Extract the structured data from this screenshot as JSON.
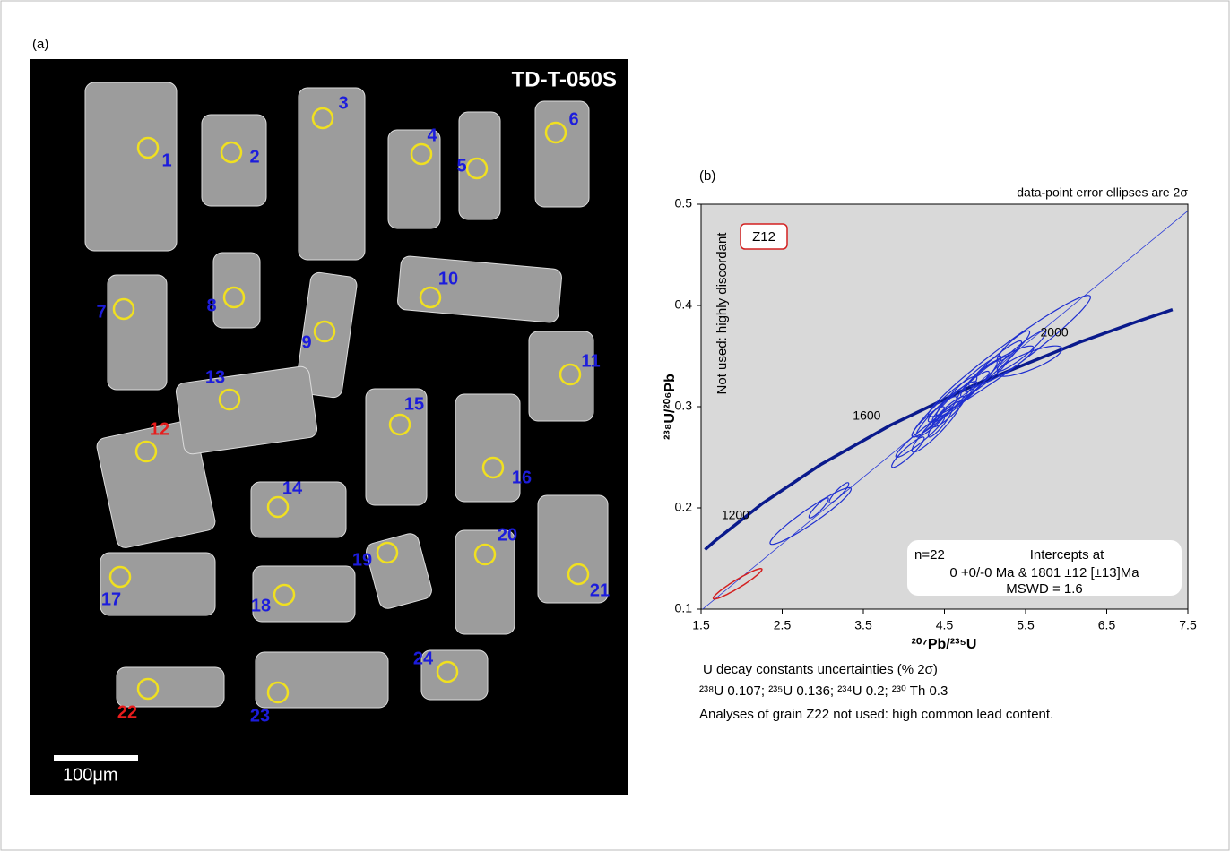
{
  "panel_a": {
    "label": "(a)",
    "sample": "TD-T-050S",
    "scale_bar": "100μm",
    "grains": [
      {
        "label": "1",
        "color": "#1c1cdc"
      },
      {
        "label": "2",
        "color": "#1c1cdc"
      },
      {
        "label": "3",
        "color": "#1c1cdc"
      },
      {
        "label": "4",
        "color": "#1c1cdc"
      },
      {
        "label": "5",
        "color": "#1c1cdc"
      },
      {
        "label": "6",
        "color": "#1c1cdc"
      },
      {
        "label": "7",
        "color": "#1c1cdc"
      },
      {
        "label": "8",
        "color": "#1c1cdc"
      },
      {
        "label": "9",
        "color": "#1c1cdc"
      },
      {
        "label": "10",
        "color": "#1c1cdc"
      },
      {
        "label": "11",
        "color": "#1c1cdc"
      },
      {
        "label": "12",
        "color": "#e81c1c"
      },
      {
        "label": "13",
        "color": "#1c1cdc"
      },
      {
        "label": "14",
        "color": "#1c1cdc"
      },
      {
        "label": "15",
        "color": "#1c1cdc"
      },
      {
        "label": "16",
        "color": "#1c1cdc"
      },
      {
        "label": "17",
        "color": "#1c1cdc"
      },
      {
        "label": "18",
        "color": "#1c1cdc"
      },
      {
        "label": "19",
        "color": "#1c1cdc"
      },
      {
        "label": "20",
        "color": "#1c1cdc"
      },
      {
        "label": "21",
        "color": "#1c1cdc"
      },
      {
        "label": "22",
        "color": "#e81c1c"
      },
      {
        "label": "23",
        "color": "#1c1cdc"
      },
      {
        "label": "24",
        "color": "#1c1cdc"
      }
    ]
  },
  "chart_data": {
    "type": "concordia",
    "panel_label": "(b)",
    "subtitle": "data-point error ellipses are 2σ",
    "xlabel": "²⁰⁷Pb/²³⁵U",
    "ylabel": "²³⁸U/²⁰⁶Pb",
    "xlim": [
      1.5,
      7.5
    ],
    "xticks": [
      1.5,
      2.5,
      3.5,
      4.5,
      5.5,
      6.5,
      7.5
    ],
    "ylim": [
      0.1,
      0.5
    ],
    "yticks": [
      0.1,
      0.2,
      0.3,
      0.4,
      0.5
    ],
    "concordia": {
      "x": [
        1.5488,
        1.6774,
        2.2604,
        2.9703,
        3.8346,
        4.8869,
        6.1688,
        6.9103,
        7.311
      ],
      "y": [
        0.1588,
        0.1678,
        0.2046,
        0.2426,
        0.2817,
        0.3221,
        0.3638,
        0.3851,
        0.3959
      ],
      "color": "#0a1a8c"
    },
    "age_markers": [
      {
        "age": 1200,
        "x": 2.2604,
        "y": 0.2046
      },
      {
        "age": 1600,
        "x": 3.8346,
        "y": 0.2817
      },
      {
        "age": 2000,
        "x": 6.1688,
        "y": 0.3638
      }
    ],
    "discordia": {
      "x": [
        1.5,
        7.5
      ],
      "y": [
        0.0987,
        0.4935
      ],
      "color": "#2a3ad8"
    },
    "ellipses": {
      "color": "#1f2fd0",
      "x": [
        2.85,
        2.95,
        3.2,
        4.05,
        4.2,
        4.4,
        4.5,
        4.45,
        4.6,
        4.7,
        4.8,
        5.0,
        5.1,
        5.2,
        5.3,
        5.45,
        5.55,
        4.3,
        4.55,
        4.9,
        5.35,
        4.4
      ],
      "y": [
        0.192,
        0.2,
        0.215,
        0.255,
        0.27,
        0.29,
        0.3,
        0.285,
        0.305,
        0.31,
        0.32,
        0.33,
        0.34,
        0.34,
        0.35,
        0.355,
        0.345,
        0.285,
        0.295,
        0.325,
        0.36,
        0.28
      ],
      "x_err": [
        0.5,
        0.12,
        0.12,
        0.2,
        0.3,
        0.25,
        0.4,
        0.15,
        0.3,
        0.35,
        0.4,
        0.3,
        0.35,
        0.4,
        1.0,
        0.3,
        0.4,
        0.2,
        0.2,
        0.25,
        0.2,
        0.3
      ],
      "y_err": [
        0.028,
        0.01,
        0.01,
        0.015,
        0.02,
        0.02,
        0.03,
        0.015,
        0.02,
        0.025,
        0.03,
        0.02,
        0.025,
        0.02,
        0.06,
        0.02,
        0.015,
        0.015,
        0.015,
        0.02,
        0.015,
        0.025
      ],
      "rho": [
        0.95,
        0.9,
        0.9,
        0.92,
        0.95,
        0.92,
        0.95,
        0.9,
        0.93,
        0.95,
        0.95,
        0.93,
        0.95,
        0.9,
        0.97,
        0.93,
        0.8,
        0.9,
        0.9,
        0.93,
        0.9,
        0.93
      ]
    },
    "rejected": {
      "label": "Z12",
      "color": "#d42020",
      "x": 1.95,
      "y": 0.125,
      "x_err": 0.3,
      "y_err": 0.015,
      "rho": 0.95
    },
    "rejected_note": "Not used: highly discordant",
    "legend": {
      "n": "n=22",
      "heading": "Intercepts at",
      "intercepts": "0 +0/-0 Ma & 1801 ±12 [±13]Ma",
      "mswd": "MSWD = 1.6"
    },
    "notes": [
      "U decay constants uncertainties (% 2σ)",
      "²³⁸U 0.107; ²³⁵U 0.136; ²³⁴U 0.2; ²³⁰ Th 0.3",
      "Analyses of grain Z22 not used: high common lead content."
    ]
  }
}
